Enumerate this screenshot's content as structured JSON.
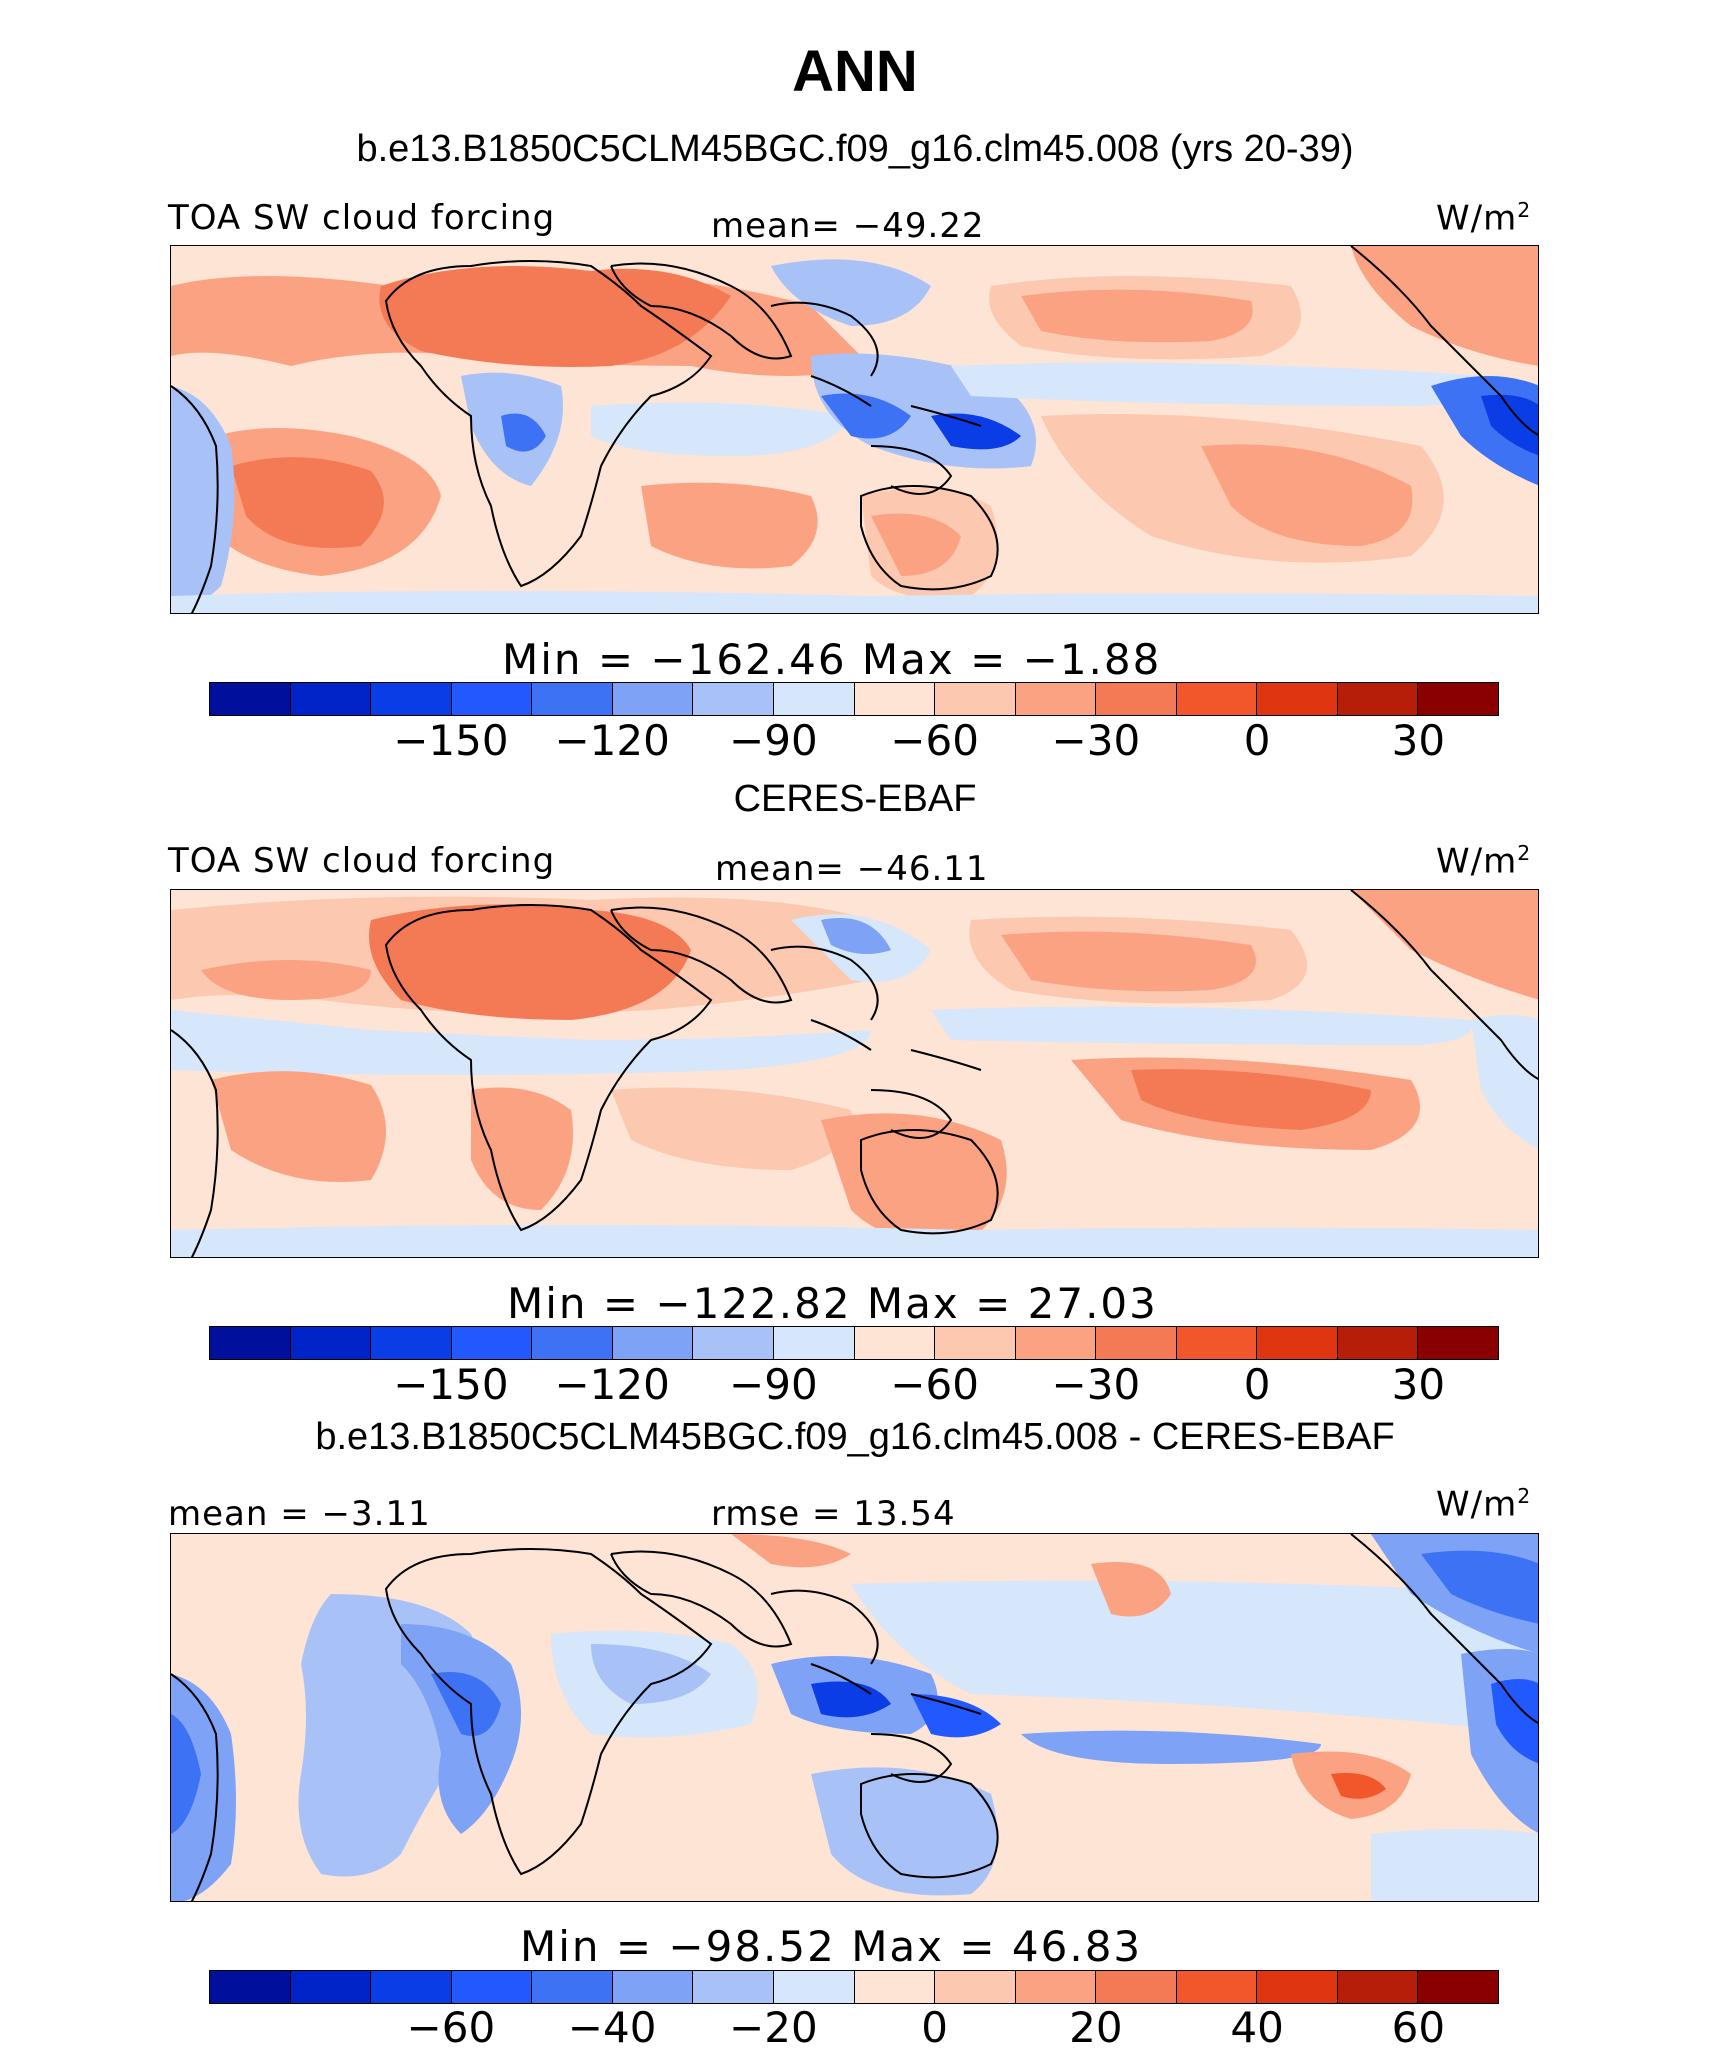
{
  "figure": {
    "title": "ANN",
    "colors_abs": [
      "#00109c",
      "#0024c8",
      "#0a3de6",
      "#2259ff",
      "#3d72f5",
      "#7ea2f5",
      "#a8c2f8",
      "#d6e6fb",
      "#fde4d4",
      "#fcc8b0",
      "#fba283",
      "#f47a55",
      "#f2572c",
      "#df3510",
      "#b61e09",
      "#8a0000"
    ],
    "colors_diff": [
      "#00109c",
      "#0024c8",
      "#0a3de6",
      "#2259ff",
      "#3d72f5",
      "#7ea2f5",
      "#a8c2f8",
      "#d6e6fb",
      "#fde4d4",
      "#fcc8b0",
      "#fba283",
      "#f47a55",
      "#f2572c",
      "#df3510",
      "#b61e09",
      "#8a0000"
    ]
  },
  "panels": [
    {
      "heading": "b.e13.B1850C5CLM45BGC.f09_g16.clm45.008 (yrs 20-39)",
      "left_label": "TOA SW cloud forcing",
      "center_label": "mean= −49.22",
      "units": "W/m",
      "units_sup": "2",
      "minmax": "Min  =  −162.46  Max  =    −1.88",
      "ticks": [
        "−150",
        "−120",
        "−90",
        "−60",
        "−30",
        "0",
        "30"
      ]
    },
    {
      "heading": "CERES-EBAF",
      "left_label": "TOA SW cloud forcing",
      "center_label": "mean= −46.11",
      "units": "W/m",
      "units_sup": "2",
      "minmax": "Min  =  −122.82  Max  =    27.03",
      "ticks": [
        "−150",
        "−120",
        "−90",
        "−60",
        "−30",
        "0",
        "30"
      ]
    },
    {
      "heading": "b.e13.B1850C5CLM45BGC.f09_g16.clm45.008 - CERES-EBAF",
      "left_label": "mean  =   −3.11",
      "center_label": "rmse  =   13.54",
      "units": "W/m",
      "units_sup": "2",
      "minmax": "Min  =  −98.52  Max  =    46.83",
      "ticks": [
        "−60",
        "−40",
        "−20",
        "0",
        "20",
        "40",
        "60"
      ]
    }
  ]
}
